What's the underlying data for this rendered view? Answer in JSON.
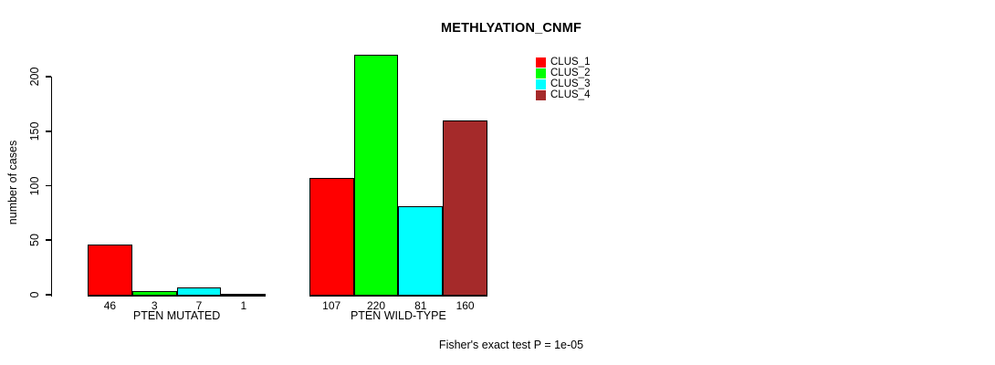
{
  "chart_data": {
    "type": "bar",
    "title": "METHLYATION_CNMF",
    "ylabel": "number of cases",
    "xlabel": "",
    "groups": [
      "PTEN MUTATED",
      "PTEN WILD-TYPE"
    ],
    "series": [
      {
        "name": "CLUS_1",
        "color": "#FF0000",
        "values": [
          46,
          107
        ]
      },
      {
        "name": "CLUS_2",
        "color": "#00FF00",
        "values": [
          3,
          220
        ]
      },
      {
        "name": "CLUS_3",
        "color": "#00FFFF",
        "values": [
          7,
          81
        ]
      },
      {
        "name": "CLUS_4",
        "color": "#A52A2A",
        "values": [
          1,
          160
        ]
      }
    ],
    "yticks": [
      0,
      50,
      100,
      150,
      200
    ],
    "ylim": [
      0,
      200
    ],
    "grid": false,
    "bar_value_labels_shown": true,
    "legend_position": "top-right",
    "legend_entries": [
      "CLUS_1",
      "CLUS_2",
      "CLUS_3",
      "CLUS_4"
    ],
    "annotation": "Fisher's exact test P = 1e-05",
    "bar_border_color": "#000000",
    "background_color": "#FFFFFF"
  }
}
